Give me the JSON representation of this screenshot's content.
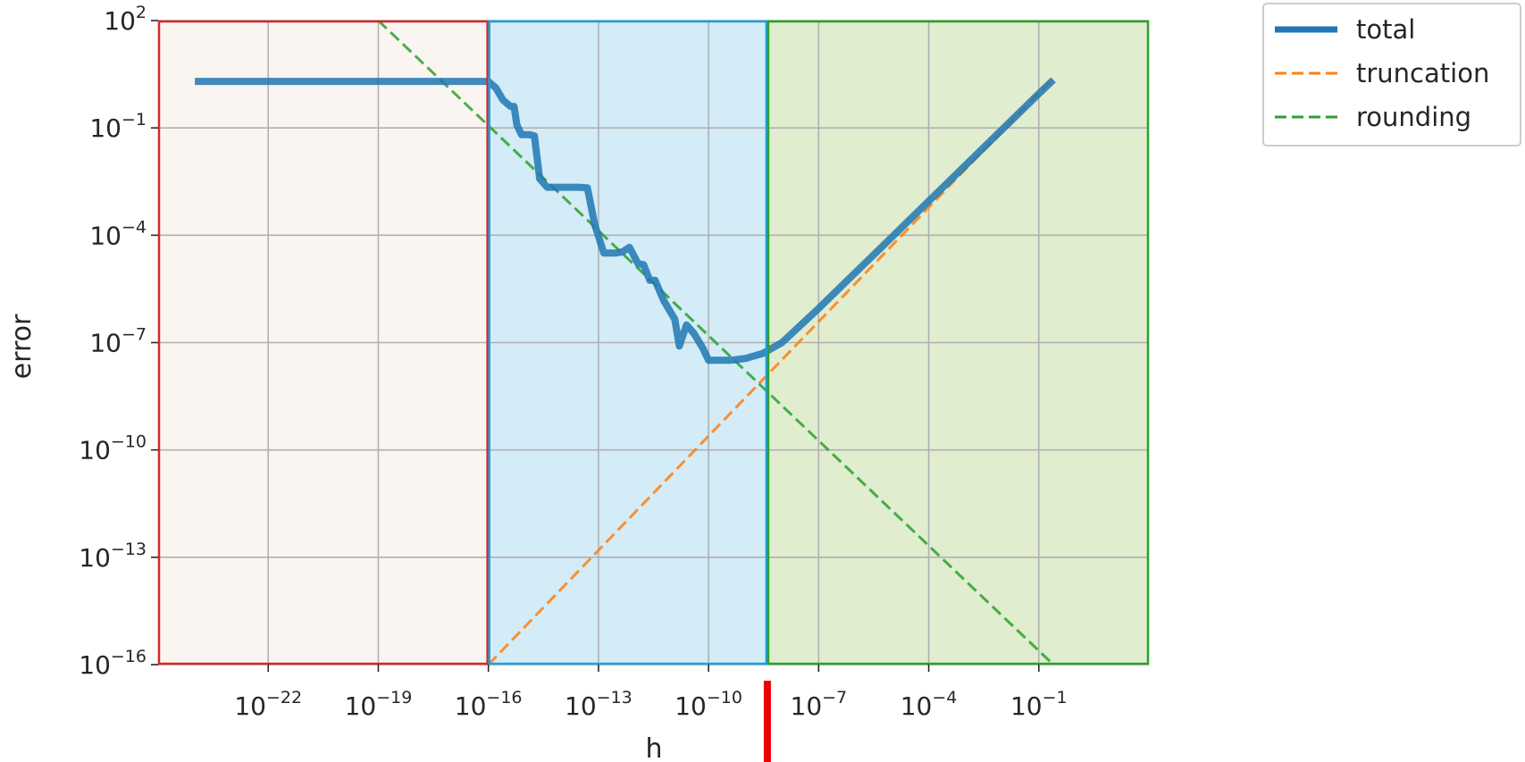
{
  "chart_data": {
    "type": "line",
    "xlabel": "h",
    "ylabel": "error",
    "x_scale": "log",
    "y_scale": "log",
    "xlim": [
      1e-25,
      100.0
    ],
    "ylim": [
      1e-16,
      100.0
    ],
    "grid": true,
    "legend_placement": "outside top-right",
    "x_ticks": [
      {
        "base": "10",
        "exp": "−22",
        "value": 1e-22
      },
      {
        "base": "10",
        "exp": "−19",
        "value": 1e-19
      },
      {
        "base": "10",
        "exp": "−16",
        "value": 1e-16
      },
      {
        "base": "10",
        "exp": "−13",
        "value": 1e-13
      },
      {
        "base": "10",
        "exp": "−10",
        "value": 1e-10
      },
      {
        "base": "10",
        "exp": "−7",
        "value": 1e-07
      },
      {
        "base": "10",
        "exp": "−4",
        "value": 0.0001
      },
      {
        "base": "10",
        "exp": "−1",
        "value": 0.1
      }
    ],
    "y_ticks": [
      {
        "base": "10",
        "exp": "2",
        "value": 100.0
      },
      {
        "base": "10",
        "exp": "−1",
        "value": 0.1
      },
      {
        "base": "10",
        "exp": "−4",
        "value": 0.0001
      },
      {
        "base": "10",
        "exp": "−7",
        "value": 1e-07
      },
      {
        "base": "10",
        "exp": "−10",
        "value": 1e-10
      },
      {
        "base": "10",
        "exp": "−13",
        "value": 1e-13
      },
      {
        "base": "10",
        "exp": "−16",
        "value": 1e-16
      }
    ],
    "regions": [
      {
        "x_range": [
          1e-25,
          1e-16
        ],
        "fill": "#fbf5f2",
        "edge": "#d62728"
      },
      {
        "x_range": [
          1e-16,
          4e-09
        ],
        "fill": "#d3ecf7",
        "edge": "#1f9fd8"
      },
      {
        "x_range": [
          4e-09,
          100.0
        ],
        "fill": "#e0edcf",
        "edge": "#2ca02c"
      }
    ],
    "marker": {
      "x": 4e-09,
      "color": "#ee0000"
    },
    "series": [
      {
        "name": "total",
        "color": "#1f77b4",
        "style": "solid",
        "points": [
          [
            1e-24,
            2.0
          ],
          [
            1e-16,
            2.0
          ],
          [
            1.6e-16,
            1.3
          ],
          [
            2.5e-16,
            0.6
          ],
          [
            4e-16,
            0.4
          ],
          [
            5e-16,
            0.4
          ],
          [
            6e-16,
            0.12
          ],
          [
            8e-16,
            0.065
          ],
          [
            1.3e-15,
            0.065
          ],
          [
            1.8e-15,
            0.06
          ],
          [
            2.5e-15,
            0.0038
          ],
          [
            4e-15,
            0.0022
          ],
          [
            1e-14,
            0.0022
          ],
          [
            3e-14,
            0.0022
          ],
          [
            5e-14,
            0.0021
          ],
          [
            8e-14,
            0.00019
          ],
          [
            1.4e-13,
            3.2e-05
          ],
          [
            3e-13,
            3.2e-05
          ],
          [
            4.5e-13,
            3.4e-05
          ],
          [
            7e-13,
            4.6e-05
          ],
          [
            1.2e-12,
            1.6e-05
          ],
          [
            1.7e-12,
            1.5e-05
          ],
          [
            2.5e-12,
            5.5e-06
          ],
          [
            3.5e-12,
            5.5e-06
          ],
          [
            6e-12,
            1.5e-06
          ],
          [
            1.2e-11,
            4.5e-07
          ],
          [
            1.6e-11,
            8e-08
          ],
          [
            2.5e-11,
            3.1e-07
          ],
          [
            4e-11,
            1.8e-07
          ],
          [
            7e-11,
            7e-08
          ],
          [
            1e-10,
            3.2e-08
          ],
          [
            2e-10,
            3.2e-08
          ],
          [
            4e-10,
            3.2e-08
          ],
          [
            1e-09,
            3.6e-08
          ],
          [
            3e-09,
            5e-08
          ],
          [
            1e-08,
            1e-07
          ],
          [
            1e-07,
            9e-07
          ],
          [
            1e-06,
            9e-06
          ],
          [
            1e-05,
            9e-05
          ],
          [
            0.0001,
            0.0009
          ],
          [
            0.001,
            0.009
          ],
          [
            0.01,
            0.09
          ],
          [
            0.1,
            0.9
          ],
          [
            0.25,
            2.2
          ]
        ]
      },
      {
        "name": "truncation",
        "color": "#ff7f0e",
        "style": "dashed",
        "points": [
          [
            1e-16,
            1e-16
          ],
          [
            0.25,
            2.5
          ]
        ]
      },
      {
        "name": "rounding",
        "color": "#2ca02c",
        "style": "dashed",
        "points": [
          [
            1e-19,
            100
          ],
          [
            0.25,
            1e-16
          ]
        ]
      }
    ],
    "legend": [
      {
        "label": "total",
        "color": "#1f77b4",
        "style": "solid"
      },
      {
        "label": "truncation",
        "color": "#ff7f0e",
        "style": "dashed"
      },
      {
        "label": "rounding",
        "color": "#2ca02c",
        "style": "dashed"
      }
    ]
  }
}
